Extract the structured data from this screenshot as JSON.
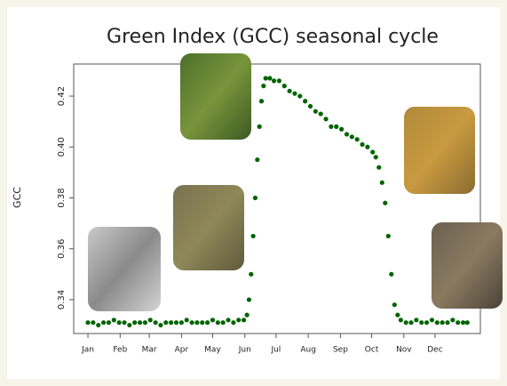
{
  "chart_data": {
    "type": "scatter",
    "title": "Green Index (GCC) seasonal cycle",
    "y_label": "GCC",
    "x": [
      1,
      6,
      11,
      16,
      21,
      26,
      31,
      36,
      41,
      46,
      51,
      56,
      61,
      66,
      71,
      76,
      81,
      86,
      91,
      96,
      101,
      106,
      111,
      116,
      121,
      126,
      131,
      136,
      141,
      146,
      151,
      154,
      156,
      158,
      160,
      162,
      164,
      166,
      168,
      170,
      172,
      176,
      180,
      185,
      190,
      195,
      200,
      205,
      210,
      215,
      220,
      225,
      230,
      235,
      240,
      245,
      250,
      255,
      260,
      265,
      270,
      275,
      278,
      281,
      284,
      287,
      290,
      293,
      296,
      299,
      302,
      307,
      312,
      317,
      322,
      327,
      332,
      337,
      342,
      347,
      352,
      357,
      362,
      366
    ],
    "series": [
      {
        "name": "GCC",
        "color": "#006400",
        "values": [
          0.331,
          0.331,
          0.33,
          0.331,
          0.331,
          0.332,
          0.331,
          0.331,
          0.33,
          0.331,
          0.331,
          0.331,
          0.332,
          0.331,
          0.33,
          0.331,
          0.331,
          0.331,
          0.331,
          0.332,
          0.331,
          0.331,
          0.331,
          0.331,
          0.332,
          0.331,
          0.331,
          0.332,
          0.331,
          0.332,
          0.332,
          0.334,
          0.34,
          0.35,
          0.365,
          0.38,
          0.395,
          0.408,
          0.418,
          0.424,
          0.427,
          0.427,
          0.426,
          0.426,
          0.424,
          0.422,
          0.421,
          0.42,
          0.418,
          0.416,
          0.414,
          0.413,
          0.411,
          0.408,
          0.408,
          0.407,
          0.405,
          0.404,
          0.403,
          0.401,
          0.4,
          0.398,
          0.396,
          0.392,
          0.386,
          0.378,
          0.365,
          0.35,
          0.338,
          0.334,
          0.332,
          0.331,
          0.331,
          0.332,
          0.331,
          0.331,
          0.332,
          0.331,
          0.331,
          0.331,
          0.332,
          0.331,
          0.331,
          0.331
        ]
      }
    ],
    "xlim": [
      -12.7,
      378.6
    ],
    "ylim": [
      0.3267,
      0.4326
    ],
    "xticks": [
      {
        "value": 1,
        "label": "Jan"
      },
      {
        "value": 32,
        "label": "Feb"
      },
      {
        "value": 60,
        "label": "Mar"
      },
      {
        "value": 91,
        "label": "Apr"
      },
      {
        "value": 121,
        "label": "May"
      },
      {
        "value": 152,
        "label": "Jun"
      },
      {
        "value": 182,
        "label": "Jul"
      },
      {
        "value": 213,
        "label": "Aug"
      },
      {
        "value": 244,
        "label": "Sep"
      },
      {
        "value": 274,
        "label": "Oct"
      },
      {
        "value": 305,
        "label": "Nov"
      },
      {
        "value": 335,
        "label": "Dec"
      }
    ],
    "yticks": [
      0.34,
      0.36,
      0.38,
      {
        "value": 0.4,
        "label": "0.40"
      },
      0.42
    ]
  }
}
